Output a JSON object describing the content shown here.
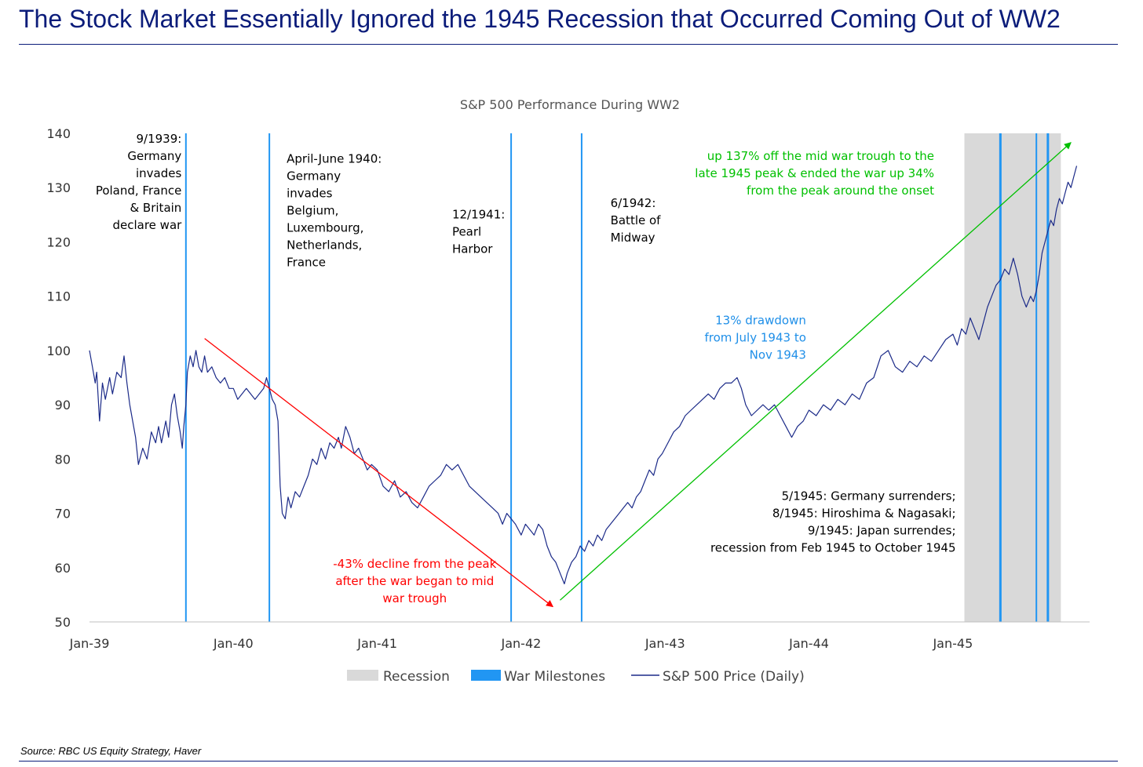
{
  "headline": "The Stock Market Essentially Ignored the 1945 Recession that Occurred Coming Out of WW2",
  "source": "Source: RBC US Equity Strategy, Haver",
  "colors": {
    "headline": "#0b1c7a",
    "series": "#1b2a88",
    "milestone": "#2196f3",
    "recession": "#d9d9d9",
    "decline": "#ff0000",
    "rise": "#00c000",
    "drawdown": "#1f8fe8"
  },
  "chart_data": {
    "type": "line",
    "title": "S&P 500 Performance During WW2",
    "ylim": [
      50,
      140
    ],
    "y_ticks": [
      50,
      60,
      70,
      80,
      90,
      100,
      110,
      120,
      130,
      140
    ],
    "x_ticks": [
      {
        "label": "Jan-39",
        "x": 1939.0
      },
      {
        "label": "Jan-40",
        "x": 1940.0
      },
      {
        "label": "Jan-41",
        "x": 1941.0
      },
      {
        "label": "Jan-42",
        "x": 1942.0
      },
      {
        "label": "Jan-43",
        "x": 1943.0
      },
      {
        "label": "Jan-44",
        "x": 1944.0
      },
      {
        "label": "Jan-45",
        "x": 1945.0
      }
    ],
    "xlim": [
      1939.0,
      1945.95
    ],
    "legend": {
      "position": "bottom",
      "items": [
        {
          "label": "Recession",
          "kind": "box"
        },
        {
          "label": "War Milestones",
          "kind": "bar"
        },
        {
          "label": "S&P 500 Price (Daily)",
          "kind": "line"
        }
      ]
    },
    "recession": {
      "start": 1945.08,
      "end": 1945.75
    },
    "milestones": [
      1939.67,
      1940.25,
      1941.93,
      1942.42,
      1945.33,
      1945.58,
      1945.66
    ],
    "series": [
      {
        "name": "S&P 500 Price (Daily)",
        "points": [
          [
            1939.0,
            100
          ],
          [
            1939.02,
            97
          ],
          [
            1939.04,
            94
          ],
          [
            1939.05,
            96
          ],
          [
            1939.07,
            87
          ],
          [
            1939.09,
            94
          ],
          [
            1939.11,
            91
          ],
          [
            1939.14,
            95
          ],
          [
            1939.16,
            92
          ],
          [
            1939.19,
            96
          ],
          [
            1939.22,
            95
          ],
          [
            1939.24,
            99
          ],
          [
            1939.26,
            94
          ],
          [
            1939.28,
            90
          ],
          [
            1939.3,
            87
          ],
          [
            1939.32,
            84
          ],
          [
            1939.34,
            79
          ],
          [
            1939.37,
            82
          ],
          [
            1939.4,
            80
          ],
          [
            1939.43,
            85
          ],
          [
            1939.46,
            83
          ],
          [
            1939.48,
            86
          ],
          [
            1939.5,
            83
          ],
          [
            1939.53,
            87
          ],
          [
            1939.55,
            84
          ],
          [
            1939.57,
            90
          ],
          [
            1939.59,
            92
          ],
          [
            1939.61,
            88
          ],
          [
            1939.63,
            85
          ],
          [
            1939.645,
            82
          ],
          [
            1939.655,
            86
          ],
          [
            1939.67,
            90
          ],
          [
            1939.68,
            96
          ],
          [
            1939.7,
            99
          ],
          [
            1939.72,
            97
          ],
          [
            1939.74,
            100
          ],
          [
            1939.76,
            97
          ],
          [
            1939.78,
            96
          ],
          [
            1939.8,
            99
          ],
          [
            1939.82,
            96
          ],
          [
            1939.85,
            97
          ],
          [
            1939.88,
            95
          ],
          [
            1939.91,
            94
          ],
          [
            1939.94,
            95
          ],
          [
            1939.97,
            93
          ],
          [
            1940.0,
            93
          ],
          [
            1940.03,
            91
          ],
          [
            1940.06,
            92
          ],
          [
            1940.09,
            93
          ],
          [
            1940.12,
            92
          ],
          [
            1940.15,
            91
          ],
          [
            1940.18,
            92
          ],
          [
            1940.21,
            93
          ],
          [
            1940.23,
            95
          ],
          [
            1940.25,
            93
          ],
          [
            1940.27,
            91
          ],
          [
            1940.29,
            90
          ],
          [
            1940.31,
            87
          ],
          [
            1940.325,
            75
          ],
          [
            1940.34,
            70
          ],
          [
            1940.36,
            69
          ],
          [
            1940.38,
            73
          ],
          [
            1940.4,
            71
          ],
          [
            1940.43,
            74
          ],
          [
            1940.46,
            73
          ],
          [
            1940.49,
            75
          ],
          [
            1940.52,
            77
          ],
          [
            1940.55,
            80
          ],
          [
            1940.58,
            79
          ],
          [
            1940.61,
            82
          ],
          [
            1940.64,
            80
          ],
          [
            1940.67,
            83
          ],
          [
            1940.7,
            82
          ],
          [
            1940.73,
            84
          ],
          [
            1940.75,
            82
          ],
          [
            1940.78,
            86
          ],
          [
            1940.81,
            84
          ],
          [
            1940.84,
            81
          ],
          [
            1940.87,
            82
          ],
          [
            1940.9,
            80
          ],
          [
            1940.93,
            78
          ],
          [
            1940.96,
            79
          ],
          [
            1941.0,
            78
          ],
          [
            1941.04,
            75
          ],
          [
            1941.08,
            74
          ],
          [
            1941.12,
            76
          ],
          [
            1941.16,
            73
          ],
          [
            1941.2,
            74
          ],
          [
            1941.24,
            72
          ],
          [
            1941.28,
            71
          ],
          [
            1941.32,
            73
          ],
          [
            1941.36,
            75
          ],
          [
            1941.4,
            76
          ],
          [
            1941.44,
            77
          ],
          [
            1941.48,
            79
          ],
          [
            1941.52,
            78
          ],
          [
            1941.56,
            79
          ],
          [
            1941.6,
            77
          ],
          [
            1941.64,
            75
          ],
          [
            1941.68,
            74
          ],
          [
            1941.72,
            73
          ],
          [
            1941.76,
            72
          ],
          [
            1941.8,
            71
          ],
          [
            1941.84,
            70
          ],
          [
            1941.87,
            68
          ],
          [
            1941.9,
            70
          ],
          [
            1941.93,
            69
          ],
          [
            1941.96,
            68
          ],
          [
            1942.0,
            66
          ],
          [
            1942.03,
            68
          ],
          [
            1942.06,
            67
          ],
          [
            1942.09,
            66
          ],
          [
            1942.12,
            68
          ],
          [
            1942.15,
            67
          ],
          [
            1942.18,
            64
          ],
          [
            1942.21,
            62
          ],
          [
            1942.24,
            61
          ],
          [
            1942.27,
            59
          ],
          [
            1942.3,
            57
          ],
          [
            1942.32,
            59
          ],
          [
            1942.35,
            61
          ],
          [
            1942.38,
            62
          ],
          [
            1942.41,
            64
          ],
          [
            1942.44,
            63
          ],
          [
            1942.47,
            65
          ],
          [
            1942.5,
            64
          ],
          [
            1942.53,
            66
          ],
          [
            1942.56,
            65
          ],
          [
            1942.59,
            67
          ],
          [
            1942.62,
            68
          ],
          [
            1942.65,
            69
          ],
          [
            1942.68,
            70
          ],
          [
            1942.71,
            71
          ],
          [
            1942.74,
            72
          ],
          [
            1942.77,
            71
          ],
          [
            1942.8,
            73
          ],
          [
            1942.83,
            74
          ],
          [
            1942.86,
            76
          ],
          [
            1942.89,
            78
          ],
          [
            1942.92,
            77
          ],
          [
            1942.95,
            80
          ],
          [
            1942.98,
            81
          ],
          [
            1943.02,
            83
          ],
          [
            1943.06,
            85
          ],
          [
            1943.1,
            86
          ],
          [
            1943.14,
            88
          ],
          [
            1943.18,
            89
          ],
          [
            1943.22,
            90
          ],
          [
            1943.26,
            91
          ],
          [
            1943.3,
            92
          ],
          [
            1943.34,
            91
          ],
          [
            1943.38,
            93
          ],
          [
            1943.42,
            94
          ],
          [
            1943.46,
            94
          ],
          [
            1943.5,
            95
          ],
          [
            1943.53,
            93
          ],
          [
            1943.56,
            90
          ],
          [
            1943.6,
            88
          ],
          [
            1943.64,
            89
          ],
          [
            1943.68,
            90
          ],
          [
            1943.72,
            89
          ],
          [
            1943.76,
            90
          ],
          [
            1943.8,
            88
          ],
          [
            1943.84,
            86
          ],
          [
            1943.88,
            84
          ],
          [
            1943.92,
            86
          ],
          [
            1943.96,
            87
          ],
          [
            1944.0,
            89
          ],
          [
            1944.05,
            88
          ],
          [
            1944.1,
            90
          ],
          [
            1944.15,
            89
          ],
          [
            1944.2,
            91
          ],
          [
            1944.25,
            90
          ],
          [
            1944.3,
            92
          ],
          [
            1944.35,
            91
          ],
          [
            1944.4,
            94
          ],
          [
            1944.45,
            95
          ],
          [
            1944.5,
            99
          ],
          [
            1944.55,
            100
          ],
          [
            1944.6,
            97
          ],
          [
            1944.65,
            96
          ],
          [
            1944.7,
            98
          ],
          [
            1944.75,
            97
          ],
          [
            1944.8,
            99
          ],
          [
            1944.85,
            98
          ],
          [
            1944.9,
            100
          ],
          [
            1944.95,
            102
          ],
          [
            1945.0,
            103
          ],
          [
            1945.03,
            101
          ],
          [
            1945.06,
            104
          ],
          [
            1945.09,
            103
          ],
          [
            1945.12,
            106
          ],
          [
            1945.15,
            104
          ],
          [
            1945.18,
            102
          ],
          [
            1945.21,
            105
          ],
          [
            1945.24,
            108
          ],
          [
            1945.27,
            110
          ],
          [
            1945.3,
            112
          ],
          [
            1945.33,
            113
          ],
          [
            1945.36,
            115
          ],
          [
            1945.39,
            114
          ],
          [
            1945.42,
            117
          ],
          [
            1945.45,
            114
          ],
          [
            1945.48,
            110
          ],
          [
            1945.51,
            108
          ],
          [
            1945.54,
            110
          ],
          [
            1945.56,
            109
          ],
          [
            1945.58,
            111
          ],
          [
            1945.6,
            114
          ],
          [
            1945.62,
            118
          ],
          [
            1945.64,
            120
          ],
          [
            1945.66,
            122
          ],
          [
            1945.68,
            124
          ],
          [
            1945.7,
            123
          ],
          [
            1945.72,
            126
          ],
          [
            1945.74,
            128
          ],
          [
            1945.76,
            127
          ],
          [
            1945.78,
            129
          ],
          [
            1945.8,
            131
          ],
          [
            1945.82,
            130
          ],
          [
            1945.84,
            132
          ],
          [
            1945.86,
            134
          ]
        ]
      }
    ],
    "annotations": [
      {
        "id": "ann-1939",
        "lines": [
          "9/1939:",
          "Germany",
          "invades",
          "Poland, France",
          "& Britain",
          "declare war"
        ],
        "x": 1939.64,
        "y": 138.3,
        "align": "end",
        "color": "#000000"
      },
      {
        "id": "ann-1940",
        "lines": [
          "April-June 1940:",
          "Germany",
          "invades",
          "Belgium,",
          "Luxembourg,",
          "Netherlands,",
          "France"
        ],
        "x": 1940.37,
        "y": 134.6,
        "align": "start",
        "color": "#000000"
      },
      {
        "id": "ann-1941",
        "lines": [
          "12/1941:",
          "Pearl",
          "Harbor"
        ],
        "x": 1941.52,
        "y": 124.3,
        "align": "start",
        "color": "#000000"
      },
      {
        "id": "ann-1942",
        "lines": [
          "6/1942:",
          "Battle of",
          "Midway"
        ],
        "x": 1942.62,
        "y": 126.4,
        "align": "start",
        "color": "#000000"
      },
      {
        "id": "ann-drawdown",
        "lines": [
          "13% drawdown",
          "from July 1943 to",
          "Nov 1943"
        ],
        "x": 1943.98,
        "y": 104.8,
        "align": "end",
        "color": "#1f8fe8"
      },
      {
        "id": "ann-rise",
        "lines": [
          "up 137% off the mid war trough to the",
          "late 1945 peak & ended the war up 34%",
          "from the peak around the onset"
        ],
        "x": 1944.87,
        "y": 135.1,
        "align": "end",
        "color": "#00c000"
      },
      {
        "id": "ann-decline",
        "lines": [
          "-43% decline from the peak",
          "after the war began to mid",
          "war trough"
        ],
        "x": 1941.26,
        "y": 60.0,
        "align": "middle",
        "color": "#ff0000"
      },
      {
        "id": "ann-1945",
        "lines": [
          "5/1945: Germany surrenders;",
          "8/1945: Hiroshima & Nagasaki;",
          "9/1945: Japan surrendes;",
          "recession from Feb 1945 to October 1945"
        ],
        "x": 1945.02,
        "y": 72.5,
        "align": "end",
        "color": "#000000"
      }
    ],
    "arrows": [
      {
        "id": "decline-arrow",
        "from": [
          1939.8,
          102.2
        ],
        "to": [
          1942.22,
          52.8
        ],
        "color": "#ff0000"
      },
      {
        "id": "rise-arrow",
        "from": [
          1942.27,
          54.0
        ],
        "to": [
          1945.82,
          138.3
        ],
        "color": "#00c000"
      }
    ]
  }
}
